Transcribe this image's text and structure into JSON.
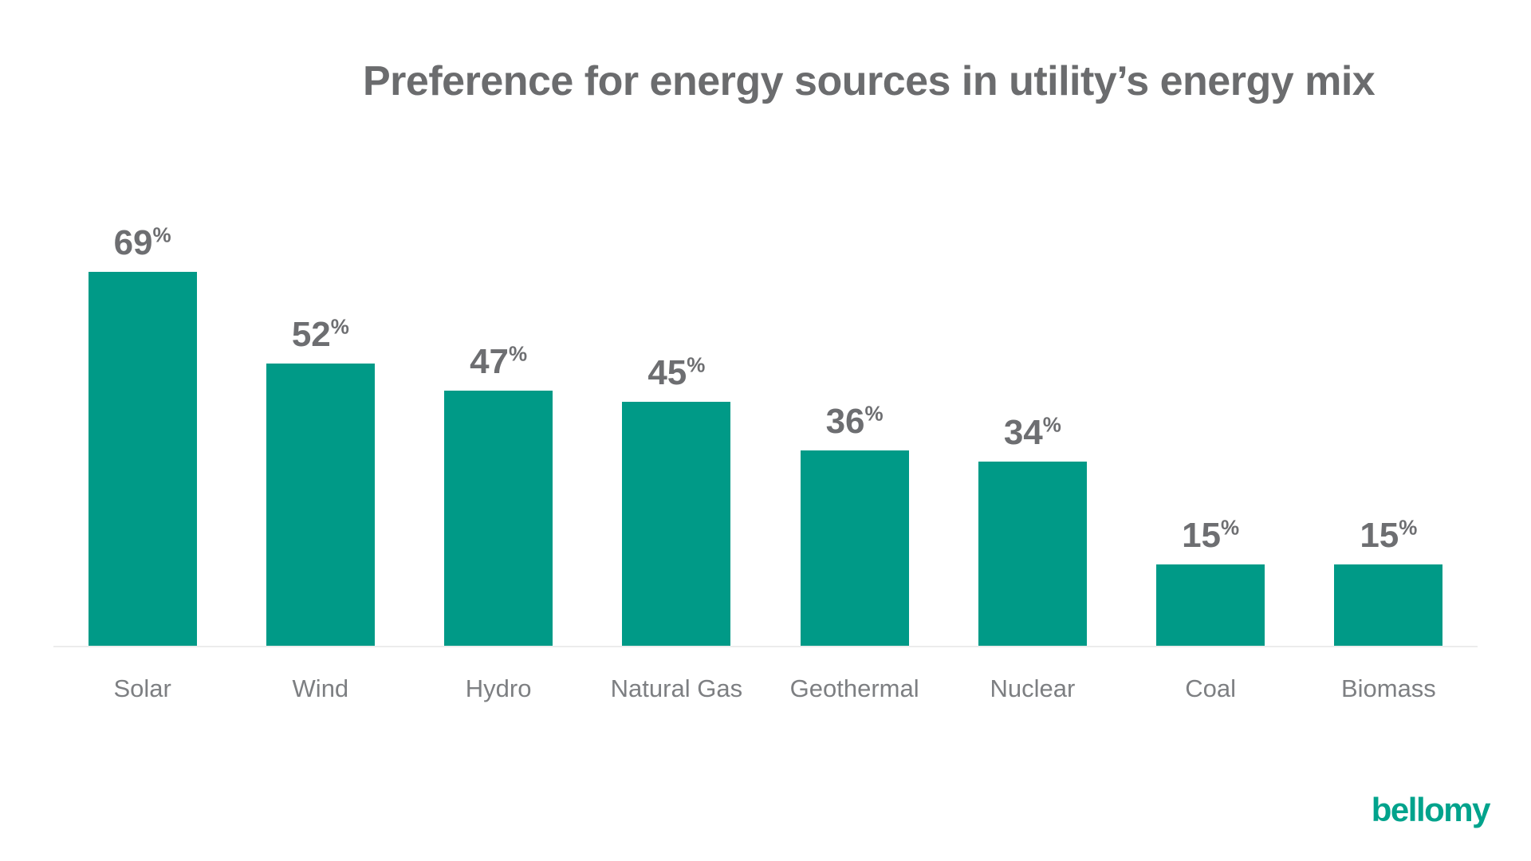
{
  "title": "Preference for energy sources in utility’s energy mix",
  "logo": {
    "text": "bellomy",
    "color": "#00a38c"
  },
  "chart_data": {
    "type": "bar",
    "title": "Preference for energy sources in utility’s energy mix",
    "categories": [
      "Solar",
      "Wind",
      "Hydro",
      "Natural Gas",
      "Geothermal",
      "Nuclear",
      "Coal",
      "Biomass"
    ],
    "values": [
      69,
      52,
      47,
      45,
      36,
      34,
      15,
      15
    ],
    "value_suffix": "%",
    "xlabel": "",
    "ylabel": "",
    "ylim": [
      0,
      100
    ],
    "grid": false,
    "legend": false,
    "data_labels": true,
    "bar_color": "#009a87",
    "value_label_color": "#6d6e71",
    "axis_label_color": "#7d7f82",
    "baseline_color": "#ececec"
  }
}
